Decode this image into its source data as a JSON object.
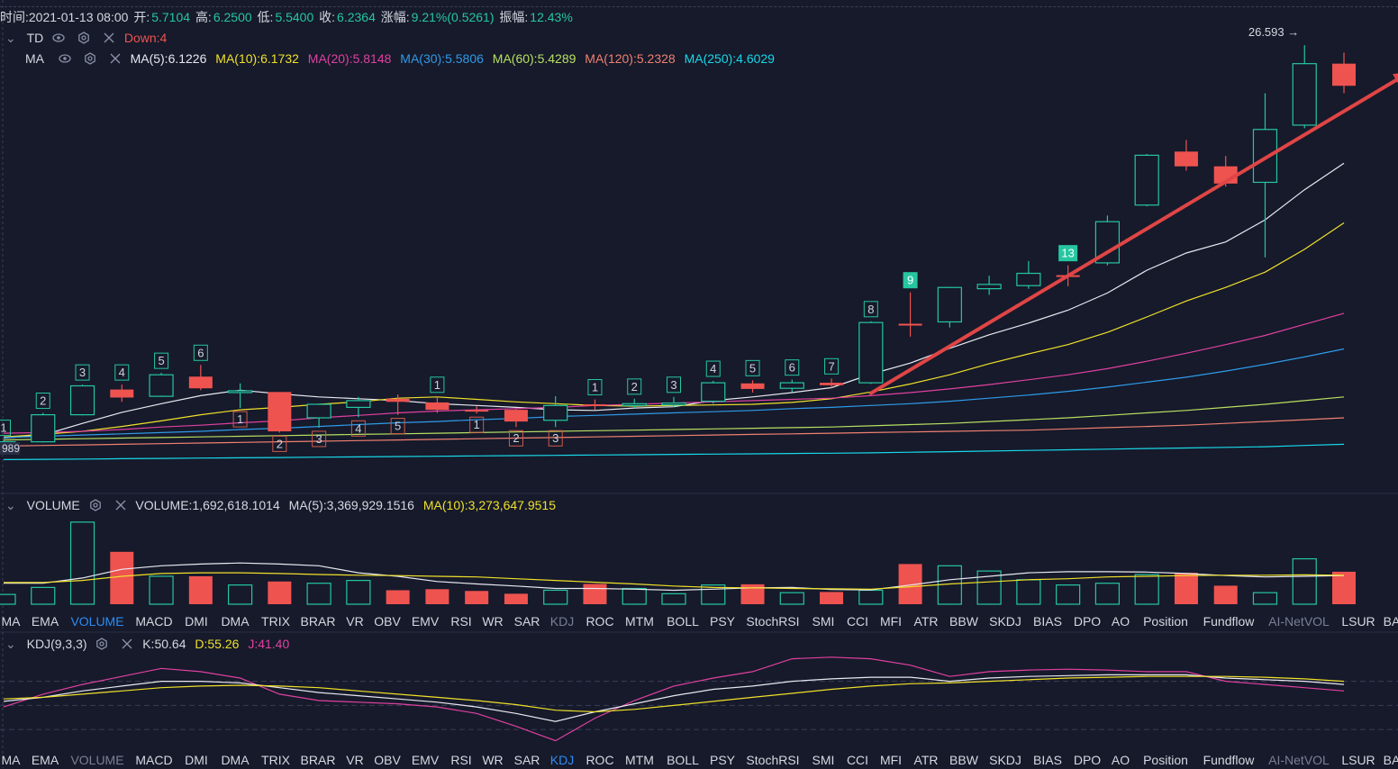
{
  "info_bar": {
    "time": "时间:2021-01-13 08:00",
    "open_label": "开:",
    "open": "5.7104",
    "high_label": "高:",
    "high": "6.2500",
    "low_label": "低:",
    "low": "5.5400",
    "close_label": "收:",
    "close": "6.2364",
    "change_label": "涨幅:",
    "change": "9.21%(0.5261)",
    "amplitude_label": "振幅:",
    "amplitude": "12.43%"
  },
  "td_row": {
    "label": "TD",
    "down": "Down:4"
  },
  "ma_row": {
    "label": "MA",
    "ma5": "MA(5):6.1226",
    "ma10": "MA(10):6.1732",
    "ma20": "MA(20):5.8148",
    "ma30": "MA(30):5.5806",
    "ma60": "MA(60):5.4289",
    "ma120": "MA(120):5.2328",
    "ma250": "MA(250):4.6029"
  },
  "volume_row": {
    "label": "VOLUME",
    "volume": "VOLUME:1,692,618.1014",
    "ma5": "MA(5):3,369,929.1516",
    "ma10": "MA(10):3,273,647.9515"
  },
  "kdj_row": {
    "label": "KDJ(9,3,3)",
    "k": "K:50.64",
    "d": "D:55.26",
    "j": "J:41.40"
  },
  "price_marker": "26.593 →",
  "left_price_label": "989",
  "tabs_upper": [
    "MA",
    "EMA",
    "VOLUME",
    "MACD",
    "DMI",
    "DMA",
    "TRIX",
    "BRAR",
    "VR",
    "OBV",
    "EMV",
    "RSI",
    "WR",
    "SAR",
    "KDJ",
    "ROC",
    "MTM",
    "BOLL",
    "PSY",
    "StochRSI",
    "SMI",
    "CCI",
    "MFI",
    "ATR",
    "BBW",
    "SKDJ",
    "BIAS",
    "DPO",
    "AO",
    "Position",
    "Fundflow",
    "AI-NetVOL",
    "LSUR",
    "BA"
  ],
  "tabs_lower": [
    "MA",
    "EMA",
    "VOLUME",
    "MACD",
    "DMI",
    "DMA",
    "TRIX",
    "BRAR",
    "VR",
    "OBV",
    "EMV",
    "RSI",
    "WR",
    "SAR",
    "KDJ",
    "ROC",
    "MTM",
    "BOLL",
    "PSY",
    "StochRSI",
    "SMI",
    "CCI",
    "MFI",
    "ATR",
    "BBW",
    "SKDJ",
    "BIAS",
    "DPO",
    "AO",
    "Position",
    "Fundflow",
    "AI-NetVOL",
    "LSUR",
    "BA"
  ],
  "colors": {
    "bg": "#161a2b",
    "up": "#26c6a0",
    "down": "#ef5350",
    "ma5": "#e8e8f0",
    "ma10": "#f0e02a",
    "ma20": "#e040a0",
    "ma30": "#2f9be8",
    "ma60": "#b8e060",
    "ma120": "#f08070",
    "ma250": "#18d8e8",
    "kdj_k": "#e8e8f0",
    "kdj_d": "#f0e02a",
    "kdj_j": "#e040a0",
    "active_tab": "#2f8cf0",
    "muted_tab": "#7a7f95",
    "arrow": "#e04545"
  },
  "chart_data": {
    "type": "candlestick",
    "candles": [
      {
        "o": 4.89,
        "h": 4.96,
        "l": 4.84,
        "c": 4.93,
        "td": "1",
        "td_pos": "above"
      },
      {
        "o": 4.93,
        "h": 5.4,
        "l": 4.92,
        "c": 5.37,
        "td": "2",
        "td_pos": "above"
      },
      {
        "o": 5.37,
        "h": 5.86,
        "l": 5.36,
        "c": 5.84,
        "td": "3",
        "td_pos": "above"
      },
      {
        "o": 5.78,
        "h": 5.86,
        "l": 5.58,
        "c": 5.65,
        "td": "4",
        "td_pos": "above"
      },
      {
        "o": 5.67,
        "h": 6.05,
        "l": 5.66,
        "c": 6.02,
        "td": "5",
        "td_pos": "above"
      },
      {
        "o": 5.99,
        "h": 6.18,
        "l": 5.77,
        "c": 5.8,
        "td": "6",
        "td_pos": "above"
      },
      {
        "o": 5.76,
        "h": 5.88,
        "l": 5.48,
        "c": 5.76,
        "td": "1",
        "td_pos": "below"
      },
      {
        "o": 5.74,
        "h": 5.74,
        "l": 5.08,
        "c": 5.1,
        "td": "2",
        "td_pos": "below"
      },
      {
        "o": 5.32,
        "h": 5.55,
        "l": 5.16,
        "c": 5.54,
        "td": "3",
        "td_pos": "below"
      },
      {
        "o": 5.49,
        "h": 5.66,
        "l": 5.33,
        "c": 5.6,
        "td": "4",
        "td_pos": "below"
      },
      {
        "o": 5.63,
        "h": 5.7,
        "l": 5.37,
        "c": 5.58,
        "td": "5",
        "td_pos": "below"
      },
      {
        "o": 5.57,
        "h": 5.66,
        "l": 5.4,
        "c": 5.45,
        "td": "1",
        "td_pos": "above"
      },
      {
        "o": 5.45,
        "h": 5.51,
        "l": 5.39,
        "c": 5.44,
        "td": "1",
        "td_pos": "below"
      },
      {
        "o": 5.45,
        "h": 5.46,
        "l": 5.17,
        "c": 5.26,
        "td": "2",
        "td_pos": "below"
      },
      {
        "o": 5.28,
        "h": 5.67,
        "l": 5.17,
        "c": 5.52,
        "td": "3",
        "td_pos": "below"
      },
      {
        "o": 5.54,
        "h": 5.62,
        "l": 5.45,
        "c": 5.52,
        "td": "1",
        "td_pos": "above"
      },
      {
        "o": 5.52,
        "h": 5.63,
        "l": 5.48,
        "c": 5.55,
        "td": "2",
        "td_pos": "above"
      },
      {
        "o": 5.53,
        "h": 5.66,
        "l": 5.49,
        "c": 5.56,
        "td": "3",
        "td_pos": "above"
      },
      {
        "o": 5.59,
        "h": 5.92,
        "l": 5.55,
        "c": 5.89,
        "td": "4",
        "td_pos": "above"
      },
      {
        "o": 5.88,
        "h": 5.93,
        "l": 5.73,
        "c": 5.79,
        "td": "5",
        "td_pos": "above"
      },
      {
        "o": 5.8,
        "h": 5.94,
        "l": 5.74,
        "c": 5.89,
        "td": "6",
        "td_pos": "above"
      },
      {
        "o": 5.89,
        "h": 5.96,
        "l": 5.81,
        "c": 5.85,
        "td": "7",
        "td_pos": "above"
      },
      {
        "o": 5.89,
        "h": 6.89,
        "l": 5.87,
        "c": 6.87,
        "td": "8",
        "td_pos": "above"
      },
      {
        "o": 6.85,
        "h": 7.36,
        "l": 6.64,
        "c": 6.83,
        "td": "9",
        "td_pos": "above",
        "td_filled": true
      },
      {
        "o": 6.88,
        "h": 7.45,
        "l": 6.79,
        "c": 7.44,
        "td": "",
        "td_pos": ""
      },
      {
        "o": 7.42,
        "h": 7.63,
        "l": 7.32,
        "c": 7.49,
        "td": "",
        "td_pos": ""
      },
      {
        "o": 7.47,
        "h": 7.87,
        "l": 7.42,
        "c": 7.67,
        "td": "",
        "td_pos": ""
      },
      {
        "o": 7.64,
        "h": 7.8,
        "l": 7.46,
        "c": 7.62,
        "td": "13",
        "td_pos": "above",
        "td_filled": true
      },
      {
        "o": 7.84,
        "h": 8.61,
        "l": 7.8,
        "c": 8.51,
        "td": "",
        "td_pos": ""
      },
      {
        "o": 8.78,
        "h": 9.61,
        "l": 8.76,
        "c": 9.59,
        "td": "",
        "td_pos": ""
      },
      {
        "o": 9.65,
        "h": 9.84,
        "l": 9.34,
        "c": 9.41,
        "td": "",
        "td_pos": ""
      },
      {
        "o": 9.41,
        "h": 9.58,
        "l": 9.08,
        "c": 9.13,
        "td": "",
        "td_pos": ""
      },
      {
        "o": 9.15,
        "h": 10.6,
        "l": 7.93,
        "c": 10.01,
        "td": "",
        "td_pos": ""
      },
      {
        "o": 10.08,
        "h": 11.38,
        "l": 10.03,
        "c": 11.08,
        "td": "",
        "td_pos": ""
      },
      {
        "o": 11.08,
        "h": 11.26,
        "l": 10.6,
        "c": 10.72,
        "td": "",
        "td_pos": ""
      }
    ],
    "ma_lines": {
      "MA5": [
        4.99,
        5.04,
        5.23,
        5.41,
        5.55,
        5.68,
        5.77,
        5.71,
        5.66,
        5.63,
        5.6,
        5.55,
        5.52,
        5.49,
        5.45,
        5.44,
        5.48,
        5.5,
        5.6,
        5.66,
        5.73,
        5.81,
        6.03,
        6.21,
        6.45,
        6.67,
        6.86,
        7.07,
        7.35,
        7.72,
        8.0,
        8.18,
        8.54,
        9.03,
        9.46
      ],
      "MA10": [
        5.01,
        5.05,
        5.1,
        5.18,
        5.27,
        5.37,
        5.45,
        5.49,
        5.54,
        5.58,
        5.64,
        5.66,
        5.62,
        5.58,
        5.55,
        5.52,
        5.51,
        5.52,
        5.53,
        5.54,
        5.57,
        5.63,
        5.74,
        5.87,
        6.02,
        6.2,
        6.36,
        6.51,
        6.71,
        6.96,
        7.22,
        7.44,
        7.69,
        8.06,
        8.49
      ],
      "MA20": [
        5.07,
        5.08,
        5.1,
        5.13,
        5.17,
        5.2,
        5.24,
        5.27,
        5.32,
        5.36,
        5.4,
        5.43,
        5.45,
        5.47,
        5.49,
        5.52,
        5.54,
        5.56,
        5.58,
        5.6,
        5.62,
        5.64,
        5.68,
        5.73,
        5.79,
        5.86,
        5.94,
        6.02,
        6.12,
        6.24,
        6.37,
        6.51,
        6.66,
        6.84,
        7.02
      ],
      "MA30": [
        5.0,
        5.02,
        5.04,
        5.06,
        5.08,
        5.1,
        5.13,
        5.15,
        5.18,
        5.21,
        5.24,
        5.26,
        5.29,
        5.31,
        5.34,
        5.36,
        5.38,
        5.4,
        5.42,
        5.44,
        5.47,
        5.49,
        5.52,
        5.55,
        5.59,
        5.64,
        5.69,
        5.75,
        5.82,
        5.9,
        5.98,
        6.08,
        6.19,
        6.31,
        6.44
      ],
      "MA60": [
        4.96,
        4.97,
        4.98,
        4.99,
        5.0,
        5.01,
        5.02,
        5.03,
        5.04,
        5.05,
        5.06,
        5.07,
        5.08,
        5.09,
        5.1,
        5.11,
        5.12,
        5.13,
        5.14,
        5.15,
        5.16,
        5.17,
        5.19,
        5.21,
        5.23,
        5.26,
        5.29,
        5.32,
        5.36,
        5.4,
        5.44,
        5.49,
        5.54,
        5.6,
        5.66
      ],
      "MA120": [
        4.86,
        4.87,
        4.88,
        4.89,
        4.9,
        4.91,
        4.92,
        4.93,
        4.94,
        4.95,
        4.96,
        4.97,
        4.98,
        4.99,
        5.0,
        5.01,
        5.02,
        5.03,
        5.04,
        5.05,
        5.06,
        5.07,
        5.08,
        5.09,
        5.1,
        5.11,
        5.12,
        5.14,
        5.16,
        5.18,
        5.2,
        5.23,
        5.26,
        5.29,
        5.32
      ],
      "MA250": [
        4.64,
        4.645,
        4.65,
        4.655,
        4.66,
        4.665,
        4.67,
        4.675,
        4.68,
        4.685,
        4.69,
        4.695,
        4.7,
        4.705,
        4.71,
        4.715,
        4.72,
        4.725,
        4.73,
        4.735,
        4.74,
        4.745,
        4.75,
        4.76,
        4.77,
        4.78,
        4.79,
        4.8,
        4.81,
        4.82,
        4.83,
        4.84,
        4.85,
        4.87,
        4.89
      ]
    },
    "price_range": [
      4.5,
      11.5
    ],
    "volume": {
      "values": [
        0.28,
        0.48,
        2.35,
        1.5,
        0.8,
        0.8,
        0.55,
        0.65,
        0.6,
        0.68,
        0.4,
        0.43,
        0.38,
        0.3,
        0.4,
        0.58,
        0.45,
        0.3,
        0.55,
        0.57,
        0.33,
        0.35,
        0.4,
        1.15,
        1.1,
        0.95,
        0.7,
        0.55,
        0.6,
        0.85,
        0.9,
        0.53,
        0.33,
        1.3,
        0.93
      ],
      "ma5": [
        0.6,
        0.6,
        0.75,
        1.0,
        1.1,
        1.15,
        1.18,
        1.15,
        1.1,
        0.9,
        0.8,
        0.65,
        0.58,
        0.52,
        0.45,
        0.45,
        0.43,
        0.4,
        0.43,
        0.47,
        0.48,
        0.42,
        0.41,
        0.55,
        0.7,
        0.8,
        0.9,
        0.93,
        0.93,
        0.92,
        0.88,
        0.82,
        0.78,
        0.8,
        0.82
      ],
      "ma10": [
        0.62,
        0.62,
        0.68,
        0.8,
        0.88,
        0.9,
        0.9,
        0.88,
        0.85,
        0.83,
        0.82,
        0.8,
        0.78,
        0.73,
        0.68,
        0.63,
        0.58,
        0.52,
        0.48,
        0.47,
        0.45,
        0.44,
        0.43,
        0.5,
        0.58,
        0.64,
        0.7,
        0.73,
        0.78,
        0.8,
        0.82,
        0.83,
        0.83,
        0.84,
        0.83
      ],
      "up_flags": [
        1,
        1,
        1,
        0,
        1,
        0,
        1,
        0,
        1,
        1,
        0,
        0,
        0,
        0,
        1,
        0,
        1,
        1,
        1,
        0,
        1,
        0,
        1,
        0,
        1,
        1,
        1,
        1,
        1,
        1,
        0,
        0,
        1,
        1,
        0
      ],
      "range": [
        0,
        2.5
      ]
    },
    "kdj": {
      "K": [
        55,
        60,
        68,
        74,
        80,
        80,
        78,
        72,
        66,
        62,
        58,
        54,
        48,
        40,
        30,
        42,
        52,
        62,
        70,
        74,
        80,
        83,
        85,
        85,
        80,
        84,
        86,
        87,
        88,
        88,
        88,
        84,
        82,
        80,
        76
      ],
      "D": [
        58,
        60,
        64,
        68,
        72,
        74,
        75,
        74,
        72,
        68,
        64,
        60,
        56,
        51,
        44,
        42,
        45,
        50,
        55,
        60,
        65,
        70,
        74,
        77,
        78,
        80,
        82,
        84,
        85,
        86,
        86,
        86,
        85,
        83,
        80
      ],
      "J": [
        48,
        64,
        76,
        86,
        96,
        92,
        84,
        64,
        56,
        54,
        52,
        48,
        40,
        24,
        6,
        34,
        56,
        74,
        84,
        92,
        108,
        110,
        108,
        100,
        86,
        92,
        94,
        95,
        94,
        92,
        92,
        80,
        76,
        72,
        68
      ],
      "levels": [
        20,
        50,
        80
      ],
      "range": [
        0,
        112
      ]
    },
    "arrow": {
      "from": [
        22,
        5.72
      ],
      "to": [
        35,
        10.95
      ]
    },
    "peak_marker_index": 33
  }
}
